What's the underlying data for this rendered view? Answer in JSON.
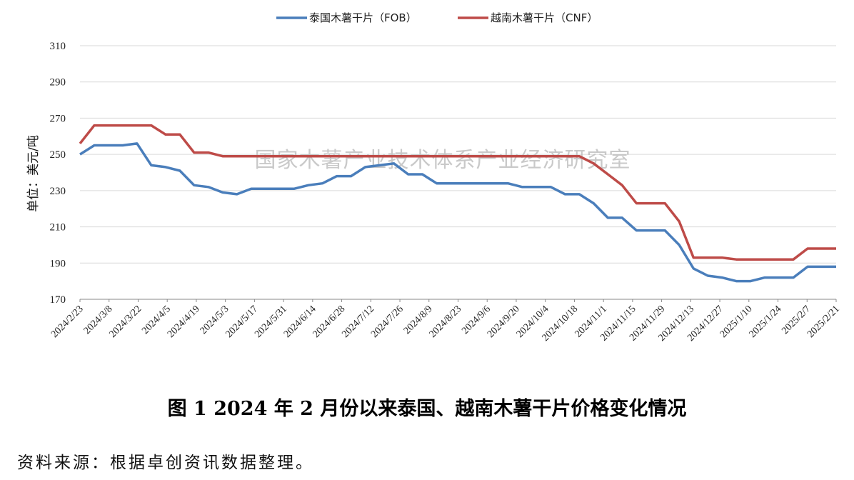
{
  "chart_data": {
    "type": "line",
    "ylabel": "单位：美元/吨",
    "ylim": [
      170,
      310
    ],
    "yticks": [
      170,
      190,
      210,
      230,
      250,
      270,
      290,
      310
    ],
    "grid": "horizontal",
    "legend_position": "top-center",
    "x_tick_labels": [
      "2024/2/23",
      "2024/3/8",
      "2024/3/22",
      "2024/4/5",
      "2024/4/19",
      "2024/5/3",
      "2024/5/17",
      "2024/5/31",
      "2024/6/14",
      "2024/6/28",
      "2024/7/12",
      "2024/7/26",
      "2024/8/9",
      "2024/8/23",
      "2024/9/6",
      "2024/9/20",
      "2024/10/4",
      "2024/10/18",
      "2024/11/1",
      "2024/11/15",
      "2024/11/29",
      "2024/12/13",
      "2024/12/27",
      "2025/1/10",
      "2025/1/24",
      "2025/2/7",
      "2025/2/21"
    ],
    "series": [
      {
        "name": "泰国木薯干片（FOB）",
        "color": "#4a7ebb",
        "values": [
          250,
          255,
          255,
          255,
          256,
          244,
          243,
          241,
          233,
          232,
          229,
          228,
          231,
          231,
          231,
          231,
          233,
          234,
          238,
          238,
          243,
          244,
          245,
          239,
          239,
          234,
          234,
          234,
          234,
          234,
          234,
          232,
          232,
          232,
          228,
          228,
          223,
          215,
          215,
          208,
          208,
          208,
          200,
          187,
          183,
          182,
          180,
          180,
          182,
          182,
          182,
          188,
          188,
          188
        ]
      },
      {
        "name": "越南木薯干片（CNF）",
        "color": "#be4b48",
        "values": [
          256,
          266,
          266,
          266,
          266,
          266,
          261,
          261,
          251,
          251,
          249,
          249,
          249,
          249,
          249,
          249,
          249,
          249,
          249,
          249,
          249,
          249,
          249,
          249,
          249,
          249,
          249,
          249,
          249,
          249,
          249,
          249,
          249,
          249,
          249,
          249,
          245,
          239,
          233,
          223,
          223,
          223,
          213,
          193,
          193,
          193,
          192,
          192,
          192,
          192,
          192,
          198,
          198,
          198
        ]
      }
    ]
  },
  "watermark": "国家木薯产业技术体系产业经济研究室",
  "caption": "图 1   2024 年 2 月份以来泰国、越南木薯干片价格变化情况",
  "source": "资料来源：根据卓创资讯数据整理。"
}
